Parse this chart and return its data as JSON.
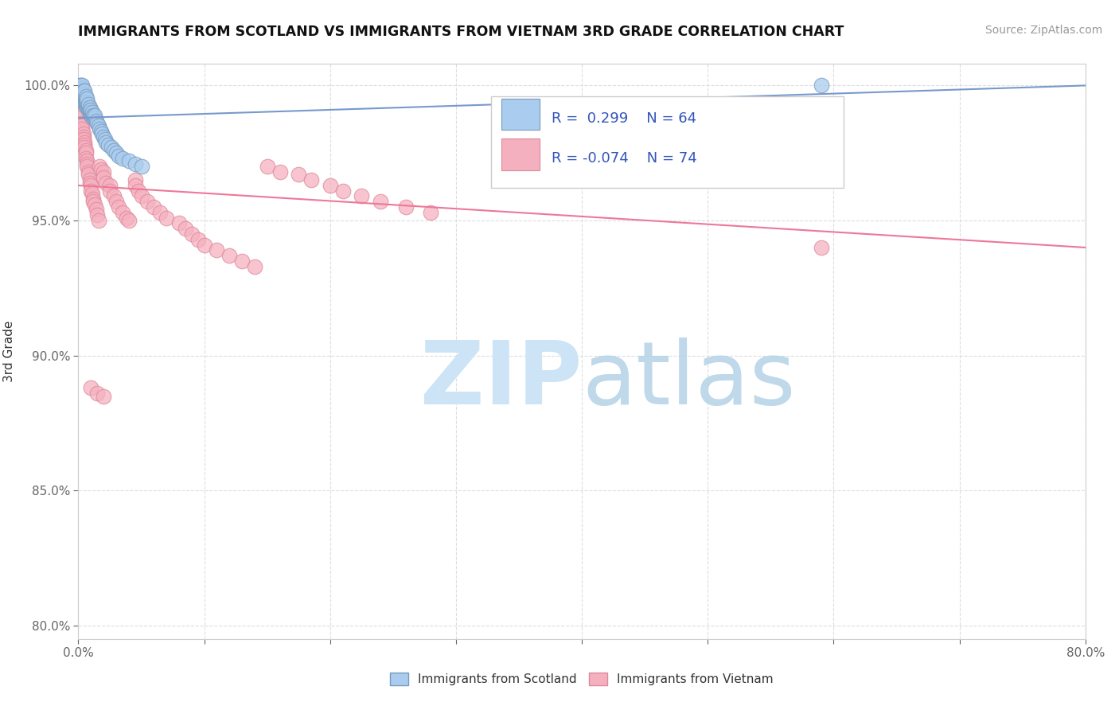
{
  "title": "IMMIGRANTS FROM SCOTLAND VS IMMIGRANTS FROM VIETNAM 3RD GRADE CORRELATION CHART",
  "source_text": "Source: ZipAtlas.com",
  "ylabel": "3rd Grade",
  "xlim": [
    0.0,
    0.8
  ],
  "ylim": [
    0.795,
    1.008
  ],
  "ytick_vals": [
    0.8,
    0.85,
    0.9,
    0.95,
    1.0
  ],
  "ytick_labels": [
    "80.0%",
    "85.0%",
    "90.0%",
    "95.0%",
    "100.0%"
  ],
  "xtick_vals": [
    0.0,
    0.1,
    0.2,
    0.3,
    0.4,
    0.5,
    0.6,
    0.7,
    0.8
  ],
  "xtick_labels": [
    "0.0%",
    "",
    "",
    "",
    "",
    "",
    "",
    "",
    "80.0%"
  ],
  "scotland_color": "#aaccee",
  "scotland_edge": "#7799bb",
  "vietnam_color": "#f5b0c0",
  "vietnam_edge": "#dd8899",
  "trend_scotland_color": "#7799cc",
  "trend_vietnam_color": "#ee7799",
  "r_scotland": 0.299,
  "n_scotland": 64,
  "r_vietnam": -0.074,
  "n_vietnam": 74,
  "watermark_color": "#cce4f5",
  "background_color": "#ffffff",
  "grid_color": "#dddddd",
  "legend_text_color": "#3355bb",
  "scotland_x": [
    0.001,
    0.001,
    0.002,
    0.002,
    0.002,
    0.003,
    0.003,
    0.003,
    0.003,
    0.003,
    0.003,
    0.004,
    0.004,
    0.004,
    0.004,
    0.004,
    0.005,
    0.005,
    0.005,
    0.005,
    0.005,
    0.005,
    0.006,
    0.006,
    0.006,
    0.006,
    0.007,
    0.007,
    0.007,
    0.007,
    0.008,
    0.008,
    0.008,
    0.009,
    0.009,
    0.009,
    0.01,
    0.01,
    0.01,
    0.011,
    0.011,
    0.012,
    0.012,
    0.013,
    0.013,
    0.014,
    0.015,
    0.016,
    0.017,
    0.018,
    0.019,
    0.02,
    0.021,
    0.022,
    0.024,
    0.026,
    0.028,
    0.03,
    0.032,
    0.035,
    0.04,
    0.045,
    0.05,
    0.59
  ],
  "scotland_y": [
    0.999,
    1.0,
    0.998,
    0.999,
    1.0,
    0.995,
    0.996,
    0.997,
    0.998,
    0.999,
    1.0,
    0.994,
    0.995,
    0.996,
    0.997,
    0.998,
    0.993,
    0.994,
    0.995,
    0.996,
    0.997,
    0.998,
    0.993,
    0.994,
    0.995,
    0.996,
    0.992,
    0.993,
    0.994,
    0.995,
    0.991,
    0.992,
    0.993,
    0.99,
    0.991,
    0.992,
    0.989,
    0.99,
    0.991,
    0.989,
    0.99,
    0.988,
    0.989,
    0.988,
    0.989,
    0.987,
    0.986,
    0.985,
    0.984,
    0.983,
    0.982,
    0.981,
    0.98,
    0.979,
    0.978,
    0.977,
    0.976,
    0.975,
    0.974,
    0.973,
    0.972,
    0.971,
    0.97,
    1.0
  ],
  "vietnam_x": [
    0.001,
    0.002,
    0.002,
    0.003,
    0.003,
    0.004,
    0.004,
    0.004,
    0.005,
    0.005,
    0.005,
    0.006,
    0.006,
    0.006,
    0.007,
    0.007,
    0.007,
    0.008,
    0.008,
    0.009,
    0.009,
    0.01,
    0.01,
    0.011,
    0.012,
    0.012,
    0.013,
    0.014,
    0.015,
    0.016,
    0.017,
    0.018,
    0.02,
    0.02,
    0.022,
    0.025,
    0.025,
    0.028,
    0.03,
    0.032,
    0.035,
    0.038,
    0.04,
    0.045,
    0.045,
    0.048,
    0.05,
    0.055,
    0.06,
    0.065,
    0.07,
    0.08,
    0.085,
    0.09,
    0.095,
    0.1,
    0.11,
    0.12,
    0.13,
    0.14,
    0.15,
    0.16,
    0.175,
    0.185,
    0.2,
    0.21,
    0.225,
    0.24,
    0.26,
    0.28,
    0.01,
    0.015,
    0.02,
    0.59
  ],
  "vietnam_y": [
    0.99,
    0.988,
    0.986,
    0.985,
    0.984,
    0.982,
    0.981,
    0.98,
    0.979,
    0.978,
    0.977,
    0.976,
    0.975,
    0.973,
    0.972,
    0.971,
    0.97,
    0.968,
    0.967,
    0.965,
    0.964,
    0.963,
    0.961,
    0.96,
    0.958,
    0.957,
    0.956,
    0.954,
    0.952,
    0.95,
    0.97,
    0.969,
    0.968,
    0.966,
    0.964,
    0.963,
    0.961,
    0.959,
    0.957,
    0.955,
    0.953,
    0.951,
    0.95,
    0.965,
    0.963,
    0.961,
    0.959,
    0.957,
    0.955,
    0.953,
    0.951,
    0.949,
    0.947,
    0.945,
    0.943,
    0.941,
    0.939,
    0.937,
    0.935,
    0.933,
    0.97,
    0.968,
    0.967,
    0.965,
    0.963,
    0.961,
    0.959,
    0.957,
    0.955,
    0.953,
    0.888,
    0.886,
    0.885,
    0.94
  ],
  "trend_vietnam_x0": 0.0,
  "trend_vietnam_y0": 0.963,
  "trend_vietnam_x1": 0.8,
  "trend_vietnam_y1": 0.94,
  "trend_scotland_x0": 0.0,
  "trend_scotland_y0": 0.988,
  "trend_scotland_x1": 0.8,
  "trend_scotland_y1": 1.0
}
